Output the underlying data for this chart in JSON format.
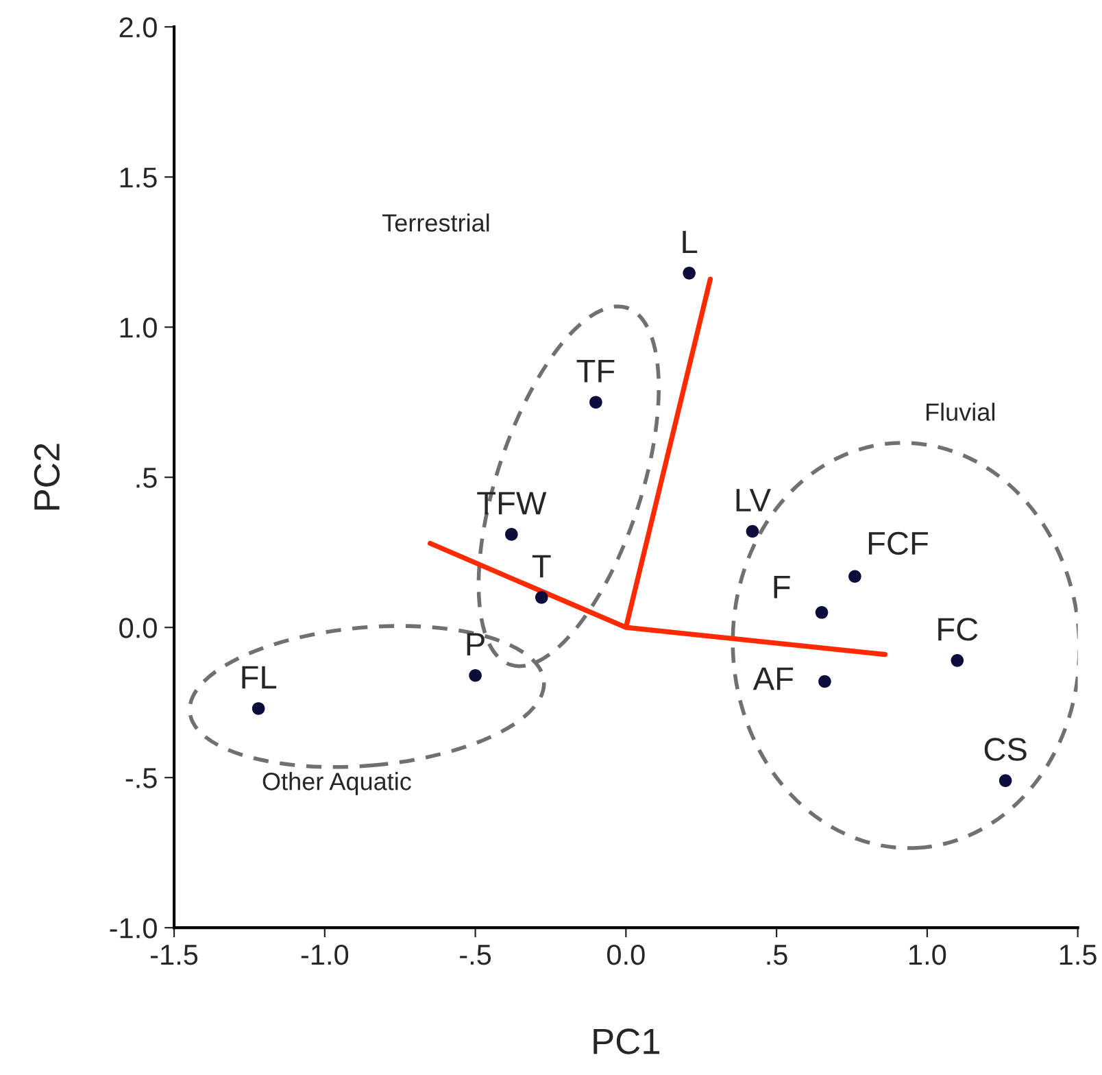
{
  "chart_data": {
    "type": "scatter",
    "xlabel": "PC1",
    "ylabel": "PC2",
    "x": [
      0.21,
      -0.1,
      -0.38,
      -0.28,
      -0.5,
      -1.22,
      0.42,
      0.65,
      0.76,
      1.1,
      0.66,
      1.26
    ],
    "series": [
      {
        "marker": "circle",
        "color": "#0d0d3d",
        "values": [
          1.18,
          0.75,
          0.31,
          0.1,
          -0.16,
          -0.27,
          0.32,
          0.05,
          0.17,
          -0.11,
          -0.18,
          -0.51
        ]
      },
      {
        "type": "line",
        "color": "#ff2a00",
        "x": [
          -0.65,
          0,
          0.86,
          null,
          0,
          0.28
        ],
        "values": [
          0.28,
          0,
          -0.09,
          null,
          0,
          1.16
        ]
      }
    ],
    "annotations": [
      {
        "text": "L",
        "x": 0.21,
        "y": 1.18
      },
      {
        "text": "TF",
        "x": -0.1,
        "y": 0.75
      },
      {
        "text": "TFW",
        "x": -0.38,
        "y": 0.31
      },
      {
        "text": "T",
        "x": -0.28,
        "y": 0.1
      },
      {
        "text": "P",
        "x": -0.5,
        "y": -0.16
      },
      {
        "text": "FL",
        "x": -1.22,
        "y": -0.27
      },
      {
        "text": "LV",
        "x": 0.42,
        "y": 0.32
      },
      {
        "text": "F",
        "x": 0.65,
        "y": 0.05
      },
      {
        "text": "FCF",
        "x": 0.76,
        "y": 0.17
      },
      {
        "text": "FC",
        "x": 1.1,
        "y": -0.11
      },
      {
        "text": "AF",
        "x": 0.66,
        "y": -0.18
      },
      {
        "text": "CS",
        "x": 1.26,
        "y": -0.51
      },
      "Terrestrial",
      "Fluvial",
      "Other Aquatic"
    ],
    "xlim": [
      -1.5,
      1.5
    ],
    "ylim": [
      -1.0,
      2.0
    ],
    "xticks": [
      {
        "value": -1.5,
        "label": "-1.5"
      },
      {
        "value": -1.0,
        "label": "-1.0"
      },
      {
        "value": -0.5,
        "label": "-.5"
      },
      {
        "value": 0,
        "label": "0.0"
      },
      {
        "value": 0.5,
        "label": ".5"
      },
      {
        "value": 1.0,
        "label": "1.0"
      },
      {
        "value": 1.5,
        "label": "1.5"
      }
    ],
    "yticks": [
      {
        "value": -1.0,
        "label": "-1.0"
      },
      {
        "value": -0.5,
        "label": "-.5"
      },
      {
        "value": 0,
        "label": "0.0"
      },
      {
        "value": 0.5,
        "label": ".5"
      },
      {
        "value": 1.0,
        "label": "1.0"
      },
      {
        "value": 1.5,
        "label": "1.5"
      },
      {
        "value": 2.0,
        "label": "2.0"
      }
    ],
    "grid": false,
    "legend": false
  }
}
